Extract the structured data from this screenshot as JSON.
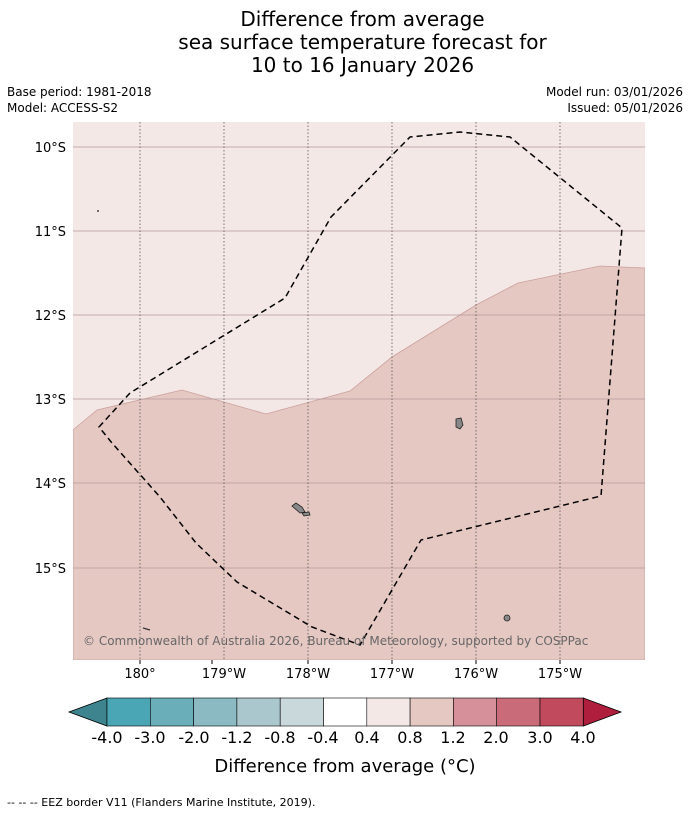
{
  "title": {
    "line1": "Difference from average",
    "line2": "sea surface temperature forecast for",
    "line3": "10 to 16 January 2026"
  },
  "meta": {
    "base_period": "Base period: 1981-2018",
    "model": "Model: ACCESS-S2",
    "model_run": "Model run: 03/01/2026",
    "issued": "Issued: 05/01/2026"
  },
  "map": {
    "lat_labels": [
      "10°S",
      "11°S",
      "12°S",
      "13°S",
      "14°S",
      "15°S"
    ],
    "lon_labels": [
      "180°",
      "179°W",
      "178°W",
      "177°W",
      "176°W",
      "175°W"
    ],
    "copyright": "© Commonwealth of Australia 2026, Bureau of Meteorology, supported by COSPPac",
    "fill_colors": {
      "band_0_4_to_0_8": "#f4e8e7",
      "band_0_8_to_1_2": "#e6c8c3"
    }
  },
  "colorbar": {
    "title": "Difference from average (°C)",
    "tick_labels": [
      "-4.0",
      "-3.0",
      "-2.0",
      "-1.2",
      "-0.8",
      "-0.4",
      "0.4",
      "0.8",
      "1.2",
      "2.0",
      "3.0",
      "4.0"
    ],
    "colors": [
      "#3e848f",
      "#4aa5b5",
      "#6aaeb9",
      "#8bbac3",
      "#a9c7cc",
      "#c9d9db",
      "#ffffff",
      "#f4e8e7",
      "#e6c8c3",
      "#d5909a",
      "#c96b78",
      "#c14a5c",
      "#b01e3e"
    ]
  },
  "footnote": "-- -- -- EEZ border V11 (Flanders Marine Institute, 2019)."
}
